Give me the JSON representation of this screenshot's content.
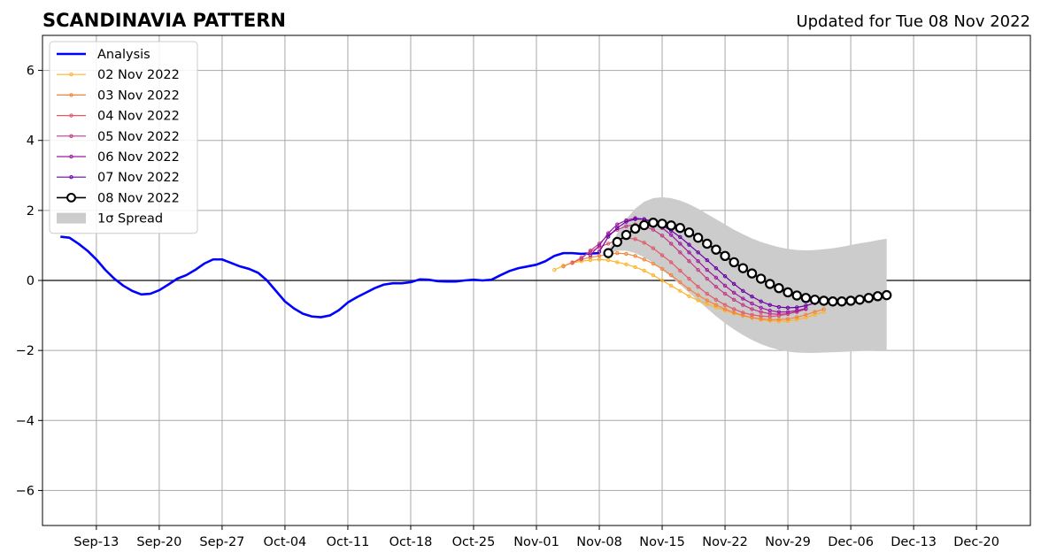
{
  "chart_data": {
    "type": "line",
    "title": "SCANDINAVIA PATTERN",
    "subtitle": "Updated for Tue 08 Nov 2022",
    "xlabel": "",
    "ylabel": "",
    "x_axis": {
      "type": "date",
      "range": [
        "2022-09-07",
        "2022-12-26"
      ],
      "tick_labels": [
        "Sep-13",
        "Sep-20",
        "Sep-27",
        "Oct-04",
        "Oct-11",
        "Oct-18",
        "Oct-25",
        "Nov-01",
        "Nov-08",
        "Nov-15",
        "Nov-22",
        "Nov-29",
        "Dec-06",
        "Dec-13",
        "Dec-20"
      ],
      "tick_dates": [
        "2022-09-13",
        "2022-09-20",
        "2022-09-27",
        "2022-10-04",
        "2022-10-11",
        "2022-10-18",
        "2022-10-25",
        "2022-11-01",
        "2022-11-08",
        "2022-11-15",
        "2022-11-22",
        "2022-11-29",
        "2022-12-06",
        "2022-12-13",
        "2022-12-20"
      ]
    },
    "y_axis": {
      "range": [
        -7,
        7
      ],
      "ticks": [
        -6,
        -4,
        -2,
        0,
        2,
        4,
        6
      ],
      "tick_labels": [
        "−6",
        "−4",
        "−2",
        "0",
        "2",
        "4",
        "6"
      ]
    },
    "grid": true,
    "zero_line": true,
    "legend_position": "upper-left",
    "analysis": {
      "name": "Analysis",
      "color": "#0000ff",
      "x": [
        "2022-09-09",
        "2022-09-10",
        "2022-09-11",
        "2022-09-12",
        "2022-09-13",
        "2022-09-14",
        "2022-09-15",
        "2022-09-16",
        "2022-09-17",
        "2022-09-18",
        "2022-09-19",
        "2022-09-20",
        "2022-09-21",
        "2022-09-22",
        "2022-09-23",
        "2022-09-24",
        "2022-09-25",
        "2022-09-26",
        "2022-09-27",
        "2022-09-28",
        "2022-09-29",
        "2022-09-30",
        "2022-10-01",
        "2022-10-02",
        "2022-10-03",
        "2022-10-04",
        "2022-10-05",
        "2022-10-06",
        "2022-10-07",
        "2022-10-08",
        "2022-10-09",
        "2022-10-10",
        "2022-10-11",
        "2022-10-12",
        "2022-10-13",
        "2022-10-14",
        "2022-10-15",
        "2022-10-16",
        "2022-10-17",
        "2022-10-18",
        "2022-10-19",
        "2022-10-20",
        "2022-10-21",
        "2022-10-22",
        "2022-10-23",
        "2022-10-24",
        "2022-10-25",
        "2022-10-26",
        "2022-10-27",
        "2022-10-28",
        "2022-10-29",
        "2022-10-30",
        "2022-10-31",
        "2022-11-01",
        "2022-11-02",
        "2022-11-03",
        "2022-11-04",
        "2022-11-05",
        "2022-11-06",
        "2022-11-07",
        "2022-11-08"
      ],
      "values": [
        1.25,
        1.22,
        1.05,
        0.85,
        0.6,
        0.3,
        0.05,
        -0.15,
        -0.3,
        -0.4,
        -0.38,
        -0.28,
        -0.12,
        0.05,
        0.15,
        0.3,
        0.48,
        0.6,
        0.6,
        0.5,
        0.4,
        0.33,
        0.22,
        0.0,
        -0.3,
        -0.6,
        -0.8,
        -0.95,
        -1.03,
        -1.05,
        -1.0,
        -0.85,
        -0.63,
        -0.48,
        -0.35,
        -0.22,
        -0.12,
        -0.08,
        -0.08,
        -0.05,
        0.03,
        0.02,
        -0.02,
        -0.03,
        -0.03,
        0.0,
        0.02,
        0.0,
        0.02,
        0.15,
        0.27,
        0.35,
        0.4,
        0.45,
        0.55,
        0.7,
        0.78,
        0.78,
        0.76,
        0.77,
        0.78
      ]
    },
    "forecasts": [
      {
        "name": "02 Nov 2022",
        "color": "#fcb52b",
        "start": "2022-11-03",
        "values": [
          0.3,
          0.42,
          0.5,
          0.55,
          0.58,
          0.6,
          0.58,
          0.52,
          0.46,
          0.38,
          0.28,
          0.15,
          0.0,
          -0.15,
          -0.3,
          -0.45,
          -0.57,
          -0.67,
          -0.77,
          -0.86,
          -0.94,
          -1.01,
          -1.07,
          -1.12,
          -1.15,
          -1.17,
          -1.16,
          -1.12,
          -1.06,
          -0.98,
          -0.9
        ]
      },
      {
        "name": "03 Nov 2022",
        "color": "#f3843b",
        "start": "2022-11-04",
        "values": [
          0.4,
          0.52,
          0.6,
          0.66,
          0.7,
          0.75,
          0.78,
          0.76,
          0.7,
          0.6,
          0.48,
          0.33,
          0.15,
          -0.05,
          -0.25,
          -0.42,
          -0.57,
          -0.7,
          -0.82,
          -0.92,
          -1.0,
          -1.06,
          -1.1,
          -1.12,
          -1.12,
          -1.1,
          -1.05,
          -0.98,
          -0.9,
          -0.82
        ]
      },
      {
        "name": "04 Nov 2022",
        "color": "#e05a6a",
        "start": "2022-11-05",
        "values": [
          0.5,
          0.65,
          0.82,
          0.95,
          1.05,
          1.15,
          1.22,
          1.18,
          1.08,
          0.92,
          0.72,
          0.52,
          0.28,
          0.05,
          -0.18,
          -0.38,
          -0.55,
          -0.7,
          -0.82,
          -0.92,
          -0.98,
          -1.02,
          -1.03,
          -1.01,
          -0.96,
          -0.88,
          -0.8
        ]
      },
      {
        "name": "05 Nov 2022",
        "color": "#c23b8a",
        "start": "2022-11-06",
        "values": [
          0.62,
          0.85,
          1.05,
          1.3,
          1.45,
          1.55,
          1.6,
          1.55,
          1.45,
          1.28,
          1.05,
          0.8,
          0.55,
          0.3,
          0.05,
          -0.18,
          -0.38,
          -0.55,
          -0.7,
          -0.82,
          -0.9,
          -0.95,
          -0.97,
          -0.95,
          -0.9,
          -0.82
        ]
      },
      {
        "name": "06 Nov 2022",
        "color": "#9c1aa2",
        "start": "2022-11-07",
        "values": [
          0.72,
          1.0,
          1.35,
          1.6,
          1.72,
          1.78,
          1.75,
          1.65,
          1.5,
          1.3,
          1.05,
          0.8,
          0.55,
          0.3,
          0.08,
          -0.15,
          -0.35,
          -0.52,
          -0.66,
          -0.78,
          -0.86,
          -0.9,
          -0.9,
          -0.86,
          -0.8
        ]
      },
      {
        "name": "07 Nov 2022",
        "color": "#6a00a8",
        "start": "2022-11-08",
        "values": [
          0.82,
          1.25,
          1.5,
          1.68,
          1.75,
          1.75,
          1.68,
          1.57,
          1.42,
          1.24,
          1.02,
          0.8,
          0.58,
          0.35,
          0.12,
          -0.1,
          -0.3,
          -0.46,
          -0.6,
          -0.7,
          -0.76,
          -0.78,
          -0.77,
          -0.72,
          -0.65
        ]
      },
      {
        "name": "08 Nov 2022",
        "color": "#000000",
        "start": "2022-11-09",
        "values": [
          0.78,
          1.1,
          1.3,
          1.48,
          1.58,
          1.65,
          1.62,
          1.57,
          1.5,
          1.37,
          1.22,
          1.05,
          0.88,
          0.7,
          0.52,
          0.35,
          0.2,
          0.05,
          -0.1,
          -0.22,
          -0.34,
          -0.43,
          -0.5,
          -0.55,
          -0.58,
          -0.6,
          -0.6,
          -0.58,
          -0.55,
          -0.5,
          -0.45,
          -0.42
        ]
      }
    ],
    "spread": {
      "name": "1σ Spread",
      "color": "#cccccc",
      "start": "2022-11-09",
      "upper": [
        0.85,
        1.35,
        1.75,
        2.05,
        2.25,
        2.35,
        2.38,
        2.35,
        2.28,
        2.18,
        2.05,
        1.9,
        1.75,
        1.6,
        1.45,
        1.32,
        1.2,
        1.1,
        1.02,
        0.95,
        0.9,
        0.87,
        0.86,
        0.87,
        0.89,
        0.92,
        0.96,
        1.01,
        1.06,
        1.1,
        1.15,
        1.19
      ],
      "lower": [
        0.75,
        0.85,
        0.85,
        0.78,
        0.66,
        0.5,
        0.3,
        0.1,
        -0.12,
        -0.35,
        -0.58,
        -0.8,
        -1.02,
        -1.22,
        -1.4,
        -1.56,
        -1.7,
        -1.82,
        -1.91,
        -1.98,
        -2.03,
        -2.06,
        -2.07,
        -2.07,
        -2.06,
        -2.05,
        -2.04,
        -2.03,
        -2.02,
        -2.01,
        -2.0,
        -2.0
      ]
    },
    "legend_entries": [
      "Analysis",
      "02 Nov 2022",
      "03 Nov 2022",
      "04 Nov 2022",
      "05 Nov 2022",
      "06 Nov 2022",
      "07 Nov 2022",
      "08 Nov 2022",
      "1σ Spread"
    ]
  }
}
